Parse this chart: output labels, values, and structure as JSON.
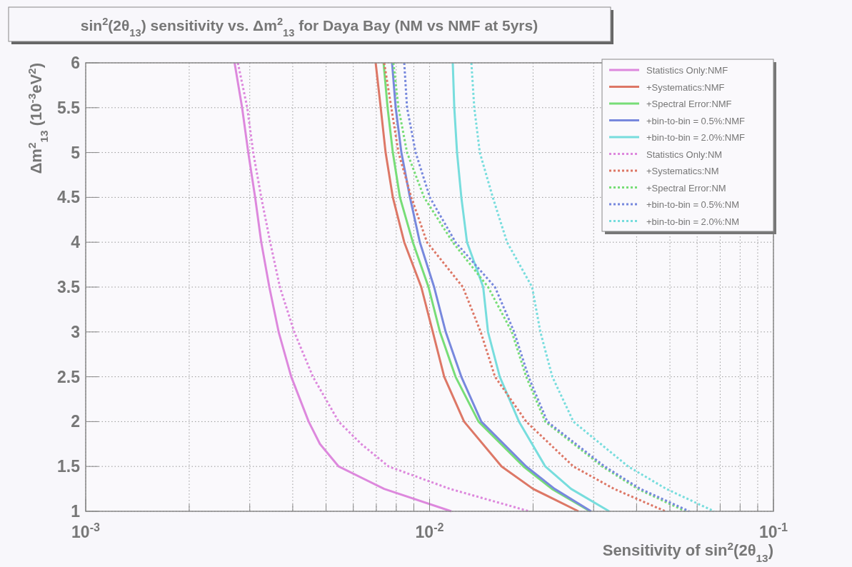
{
  "chart_data": {
    "type": "line",
    "title": "sin$^{2}$(2θ$_{13}$) sensitivity vs. Δm$^{2}$$_{13}$ for Daya Bay (NM vs NMF at 5yrs)",
    "xlabel": "Sensitivity of sin$^{2}$(2θ$_{13}$)",
    "ylabel": "Δm$^{2}$$_{13}$ (10$^{-3}$eV$^{2}$)",
    "log": "x",
    "grid": true,
    "legend": "top right",
    "xlim": [
      0.001,
      0.1
    ],
    "xticks": [
      {
        "value": 0.001,
        "label": "10$^{-3}$"
      },
      {
        "value": 0.002,
        "label": null
      },
      {
        "value": 0.003,
        "label": null
      },
      {
        "value": 0.004,
        "label": null
      },
      {
        "value": 0.005,
        "label": null
      },
      {
        "value": 0.006,
        "label": null
      },
      {
        "value": 0.007,
        "label": null
      },
      {
        "value": 0.008,
        "label": null
      },
      {
        "value": 0.009,
        "label": null
      },
      {
        "value": 0.01,
        "label": "10$^{-2}$"
      },
      {
        "value": 0.02,
        "label": null
      },
      {
        "value": 0.03,
        "label": null
      },
      {
        "value": 0.04,
        "label": null
      },
      {
        "value": 0.05,
        "label": null
      },
      {
        "value": 0.06,
        "label": null
      },
      {
        "value": 0.07,
        "label": null
      },
      {
        "value": 0.08,
        "label": null
      },
      {
        "value": 0.09,
        "label": null
      },
      {
        "value": 0.1,
        "label": "10$^{-1}$"
      }
    ],
    "ylim": [
      1,
      6
    ],
    "yticks": [
      1,
      1.5,
      2,
      2.5,
      3,
      3.5,
      4,
      4.5,
      5,
      5.5,
      6
    ],
    "series": [
      {
        "name": "Statistics Only:NMF",
        "color": "#dd88dd",
        "line_style": "solid",
        "x": [
          0.00271,
          0.00285,
          0.00297,
          0.00311,
          0.00324,
          0.00342,
          0.00364,
          0.00396,
          0.00445,
          0.0048,
          0.00544,
          0.00738,
          0.01157
        ],
        "values": [
          6,
          5.5,
          5,
          4.5,
          4,
          3.5,
          3,
          2.5,
          2,
          1.75,
          1.5,
          1.25,
          1
        ]
      },
      {
        "name": "+Systematics:NMF",
        "color": "#dd7766",
        "line_style": "solid",
        "x": [
          0.00697,
          0.00721,
          0.00745,
          0.00782,
          0.00844,
          0.00946,
          0.01022,
          0.01103,
          0.0126,
          0.0162,
          0.02,
          0.0271
        ],
        "values": [
          6,
          5.5,
          5,
          4.5,
          4,
          3.5,
          3,
          2.5,
          2,
          1.5,
          1.25,
          1
        ]
      },
      {
        "name": "+Spectral Error:NMF",
        "color": "#77dd77",
        "line_style": "solid",
        "x": [
          0.00735,
          0.00755,
          0.00782,
          0.0082,
          0.00894,
          0.00993,
          0.01072,
          0.0119,
          0.01388,
          0.01876,
          0.0227,
          0.0293
        ],
        "values": [
          6,
          5.5,
          5,
          4.5,
          4,
          3.5,
          3,
          2.5,
          2,
          1.5,
          1.25,
          1
        ]
      },
      {
        "name": "+bin-to-bin = 0.5%:NMF",
        "color": "#7788dd",
        "line_style": "solid",
        "x": [
          0.00778,
          0.00797,
          0.00828,
          0.00877,
          0.00937,
          0.01031,
          0.01114,
          0.01237,
          0.01414,
          0.0191,
          0.0231,
          0.0295
        ],
        "values": [
          6,
          5.5,
          5,
          4.5,
          4,
          3.5,
          3,
          2.5,
          2,
          1.5,
          1.25,
          1
        ]
      },
      {
        "name": "+bin-to-bin = 2.0%:NMF",
        "color": "#77dddd",
        "line_style": "solid",
        "x": [
          0.01168,
          0.0118,
          0.01202,
          0.01237,
          0.01285,
          0.01432,
          0.01479,
          0.016,
          0.0182,
          0.0217,
          0.0258,
          0.0333
        ],
        "values": [
          6,
          5.5,
          5,
          4.5,
          4,
          3.5,
          3,
          2.5,
          2,
          1.5,
          1.25,
          1
        ]
      },
      {
        "name": "Statistics Only:NM",
        "color": "#dd88dd",
        "line_style": "dotted",
        "x": [
          0.00277,
          0.00295,
          0.00307,
          0.00324,
          0.00344,
          0.00367,
          0.00404,
          0.00458,
          0.00544,
          0.00633,
          0.0076,
          0.01146,
          0.0195
        ],
        "values": [
          6,
          5.5,
          5,
          4.5,
          4,
          3.5,
          3,
          2.5,
          2,
          1.75,
          1.5,
          1.25,
          1
        ]
      },
      {
        "name": "+Systematics:NM",
        "color": "#dd7766",
        "line_style": "dotted",
        "x": [
          0.00738,
          0.00774,
          0.00812,
          0.00885,
          0.00983,
          0.0125,
          0.01408,
          0.0155,
          0.0191,
          0.0262,
          0.0344,
          0.0485
        ],
        "values": [
          6,
          5.5,
          5,
          4.5,
          4,
          3.5,
          3,
          2.5,
          2,
          1.5,
          1.25,
          1
        ]
      },
      {
        "name": "+Spectral Error:NM",
        "color": "#77dd77",
        "line_style": "dotted",
        "x": [
          0.00785,
          0.00812,
          0.0086,
          0.00964,
          0.01168,
          0.0148,
          0.01735,
          0.0191,
          0.0217,
          0.0318,
          0.0403,
          0.0555
        ],
        "values": [
          6,
          5.5,
          5,
          4.5,
          4,
          3.5,
          3,
          2.5,
          2,
          1.5,
          1.25,
          1
        ]
      },
      {
        "name": "+bin-to-bin = 0.5%:NM",
        "color": "#7788dd",
        "line_style": "dotted",
        "x": [
          0.00844,
          0.0086,
          0.00911,
          0.01002,
          0.0119,
          0.0155,
          0.01762,
          0.0194,
          0.022,
          0.0323,
          0.041,
          0.0569
        ],
        "values": [
          6,
          5.5,
          5,
          4.5,
          4,
          3.5,
          3,
          2.5,
          2,
          1.5,
          1.25,
          1
        ]
      },
      {
        "name": "+bin-to-bin = 2.0%:NM",
        "color": "#77dddd",
        "line_style": "dotted",
        "x": [
          0.01323,
          0.01349,
          0.014,
          0.01527,
          0.0168,
          0.01987,
          0.021,
          0.02275,
          0.0262,
          0.0378,
          0.0488,
          0.0672
        ],
        "values": [
          6,
          5.5,
          5,
          4.5,
          4,
          3.5,
          3,
          2.5,
          2,
          1.5,
          1.25,
          1
        ]
      }
    ]
  }
}
